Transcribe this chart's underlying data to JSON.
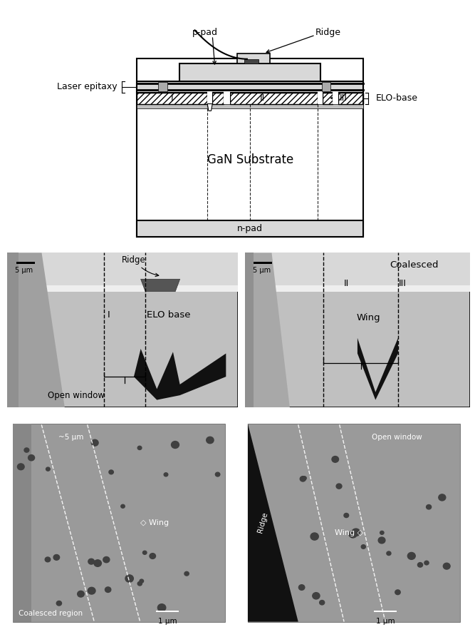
{
  "fig_width": 6.67,
  "fig_height": 8.86,
  "bg_color": "#ffffff",
  "schematic": {
    "substrate_text": "GaN Substrate",
    "npad_text": "n-pad",
    "ppad_text": "p-pad",
    "ridge_text": "Ridge",
    "laser_text": "Laser epitaxy",
    "elo_text": "ELO-base",
    "region_I": "I",
    "region_II": "II",
    "region_III": "III"
  },
  "sem_b": {
    "ridge_text": "Ridge",
    "elo_text": "ELO base",
    "region_I": "I",
    "window_text": "Open window",
    "scale_text": "5 μm"
  },
  "sem_c": {
    "coalesced_text": "Coalesced",
    "region_II": "II",
    "region_III": "III",
    "wing_text": "Wing",
    "scale_text": "5 μm"
  },
  "cl_left": {
    "width_text": "~5 μm",
    "wing_text": "◇ Wing",
    "bottom_text": "Coalesced region",
    "scale_text": "1 μm"
  },
  "cl_right": {
    "ridge_text": "Ridge",
    "window_text": "Open window",
    "wing_text": "Wing ◇",
    "scale_text": "1 μm"
  }
}
